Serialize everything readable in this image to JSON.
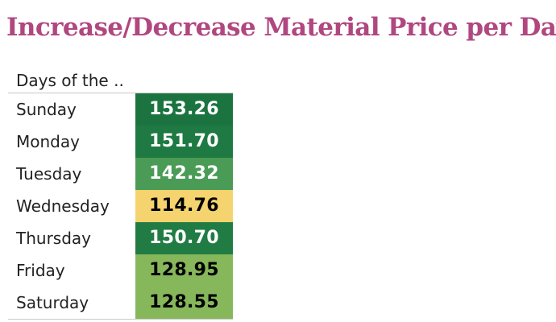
{
  "title": "Increase/Decrease Material Price per Day",
  "chart_data": {
    "type": "heatmap",
    "column_header": "Days of the ..",
    "categories": [
      "Sunday",
      "Monday",
      "Tuesday",
      "Wednesday",
      "Thursday",
      "Friday",
      "Saturday"
    ],
    "values": [
      153.26,
      151.7,
      142.32,
      114.76,
      150.7,
      128.95,
      128.55
    ],
    "value_labels": [
      "153.26",
      "151.70",
      "142.32",
      "114.76",
      "150.70",
      "128.95",
      "128.55"
    ],
    "color_scale": {
      "low": "#f5d36e",
      "mid": "#8bba5a",
      "high": "#1b7440"
    },
    "cell_colors": [
      "#1b7440",
      "#1e7a42",
      "#4a9b56",
      "#f5d36e",
      "#217c44",
      "#86b85b",
      "#86b85b"
    ],
    "text_colors": [
      "#ffffff",
      "#ffffff",
      "#ffffff",
      "#000000",
      "#ffffff",
      "#000000",
      "#000000"
    ]
  }
}
